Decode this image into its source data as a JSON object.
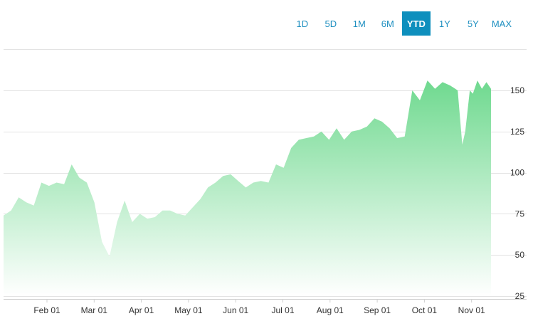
{
  "range_selector": {
    "options": [
      "1D",
      "5D",
      "1M",
      "6M",
      "YTD",
      "1Y",
      "5Y",
      "MAX"
    ],
    "selected": "YTD"
  },
  "colors": {
    "area_top": "#6fd98f",
    "area_bottom": "#ffffff",
    "active_button": "#0e8fbd",
    "button_text": "#1e8fc0"
  },
  "chart_data": {
    "type": "area",
    "title": "",
    "xlabel": "",
    "ylabel": "",
    "x_tick_labels": [
      "Feb 01",
      "Mar 01",
      "Apr 01",
      "May 01",
      "Jun 01",
      "Jul 01",
      "Aug 01",
      "Sep 01",
      "Oct 01",
      "Nov 01"
    ],
    "y_ticks": [
      25,
      50,
      75,
      100,
      125,
      150
    ],
    "ylim": [
      25,
      175
    ],
    "xlim": [
      0,
      322
    ],
    "grid": true,
    "legend": "none",
    "x": [
      0,
      5,
      10,
      15,
      20,
      25,
      30,
      35,
      40,
      45,
      50,
      55,
      60,
      65,
      70,
      75,
      80,
      85,
      90,
      95,
      100,
      105,
      110,
      115,
      120,
      125,
      130,
      135,
      140,
      145,
      150,
      155,
      160,
      165,
      170,
      175,
      180,
      185,
      190,
      195,
      200,
      205,
      210,
      215,
      220,
      225,
      230,
      235,
      240,
      245,
      250,
      255,
      260,
      265,
      270,
      275,
      280,
      285,
      290,
      295,
      300,
      303,
      305,
      308,
      310,
      313,
      316,
      319,
      322
    ],
    "y": [
      74,
      77,
      85,
      82,
      80,
      94,
      92,
      94,
      93,
      105,
      97,
      94,
      82,
      58,
      49,
      70,
      83,
      70,
      75,
      72,
      73,
      77,
      77,
      75,
      74,
      79,
      84,
      91,
      94,
      98,
      99,
      95,
      91,
      94,
      95,
      94,
      105,
      103,
      115,
      120,
      121,
      122,
      125,
      120,
      127,
      120,
      125,
      126,
      128,
      133,
      131,
      127,
      121,
      122,
      150,
      144,
      156,
      151,
      155,
      153,
      150,
      117,
      125,
      150,
      148,
      156,
      151,
      155,
      151
    ]
  }
}
